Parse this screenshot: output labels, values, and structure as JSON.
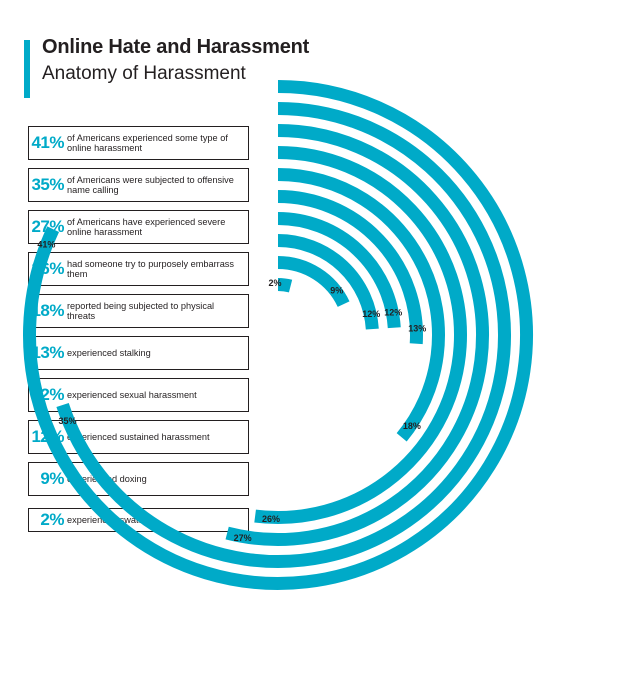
{
  "header": {
    "title": "Online Hate and Harassment",
    "subtitle": "Anatomy of Harassment"
  },
  "colors": {
    "accent": "#00aac8",
    "text": "#231f20"
  },
  "stats": [
    {
      "pct": "41%",
      "text": "of Americans experienced some type of online harassment"
    },
    {
      "pct": "35%",
      "text": "of Americans were subjected to offensive name calling"
    },
    {
      "pct": "27%",
      "text": "of Americans have experienced severe online harassment"
    },
    {
      "pct": "26%",
      "text": "had someone try to purposely embarrass them"
    },
    {
      "pct": "18%",
      "text": "reported being subjected to physical threats"
    },
    {
      "pct": "13%",
      "text": "experienced stalking"
    },
    {
      "pct": "12%",
      "text": "experienced sexual harassment"
    },
    {
      "pct": "12%",
      "text": "experienced sustained harassment"
    },
    {
      "pct": "9%",
      "text": "experienced doxing"
    },
    {
      "pct": "2%",
      "text": "experienced swatting"
    }
  ],
  "chart_data": {
    "type": "radial-bar",
    "unit": "%",
    "max_value": 50,
    "categories": [
      "some type of online harassment",
      "offensive name calling",
      "severe online harassment",
      "purposely embarrass",
      "physical threats",
      "stalking",
      "sexual harassment",
      "sustained harassment",
      "doxing",
      "swatting"
    ],
    "values": [
      41,
      35,
      27,
      26,
      18,
      13,
      12,
      12,
      9,
      2
    ],
    "labels": [
      "41%",
      "35%",
      "27%",
      "26%",
      "18%",
      "13%",
      "12%",
      "12%",
      "9%",
      "2%"
    ]
  }
}
